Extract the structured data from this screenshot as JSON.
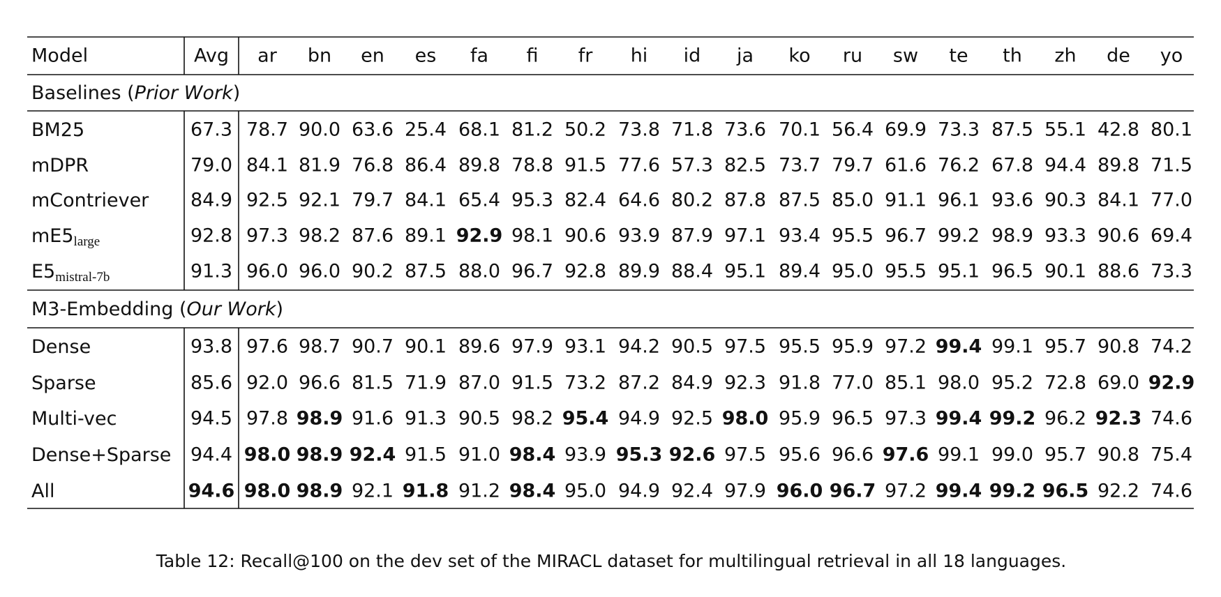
{
  "table": {
    "header": [
      "Model",
      "Avg",
      "ar",
      "bn",
      "en",
      "es",
      "fa",
      "fi",
      "fr",
      "hi",
      "id",
      "ja",
      "ko",
      "ru",
      "sw",
      "te",
      "th",
      "zh",
      "de",
      "yo"
    ],
    "sections": [
      {
        "title": {
          "prefix": "Baselines (",
          "italic": "Prior Work",
          "suffix": ")"
        },
        "rows": [
          {
            "model": {
              "name": "BM25"
            },
            "values": [
              "67.3",
              "78.7",
              "90.0",
              "63.6",
              "25.4",
              "68.1",
              "81.2",
              "50.2",
              "73.8",
              "71.8",
              "73.6",
              "70.1",
              "56.4",
              "69.9",
              "73.3",
              "87.5",
              "55.1",
              "42.8",
              "80.1"
            ],
            "bold": []
          },
          {
            "model": {
              "name": "mDPR"
            },
            "values": [
              "79.0",
              "84.1",
              "81.9",
              "76.8",
              "86.4",
              "89.8",
              "78.8",
              "91.5",
              "77.6",
              "57.3",
              "82.5",
              "73.7",
              "79.7",
              "61.6",
              "76.2",
              "67.8",
              "94.4",
              "89.8",
              "71.5"
            ],
            "bold": []
          },
          {
            "model": {
              "name": "mContriever"
            },
            "values": [
              "84.9",
              "92.5",
              "92.1",
              "79.7",
              "84.1",
              "65.4",
              "95.3",
              "82.4",
              "64.6",
              "80.2",
              "87.8",
              "87.5",
              "85.0",
              "91.1",
              "96.1",
              "93.6",
              "90.3",
              "84.1",
              "77.0"
            ],
            "bold": []
          },
          {
            "model": {
              "name": "mE5",
              "sub": "large"
            },
            "values": [
              "92.8",
              "97.3",
              "98.2",
              "87.6",
              "89.1",
              "92.9",
              "98.1",
              "90.6",
              "93.9",
              "87.9",
              "97.1",
              "93.4",
              "95.5",
              "96.7",
              "99.2",
              "98.9",
              "93.3",
              "90.6",
              "69.4"
            ],
            "bold": [
              5
            ]
          },
          {
            "model": {
              "name": "E5",
              "sub": "mistral-7b"
            },
            "values": [
              "91.3",
              "96.0",
              "96.0",
              "90.2",
              "87.5",
              "88.0",
              "96.7",
              "92.8",
              "89.9",
              "88.4",
              "95.1",
              "89.4",
              "95.0",
              "95.5",
              "95.1",
              "96.5",
              "90.1",
              "88.6",
              "73.3"
            ],
            "bold": []
          }
        ]
      },
      {
        "title": {
          "prefix": "M3-Embedding (",
          "italic": "Our Work",
          "suffix": ")"
        },
        "rows": [
          {
            "model": {
              "name": "Dense"
            },
            "values": [
              "93.8",
              "97.6",
              "98.7",
              "90.7",
              "90.1",
              "89.6",
              "97.9",
              "93.1",
              "94.2",
              "90.5",
              "97.5",
              "95.5",
              "95.9",
              "97.2",
              "99.4",
              "99.1",
              "95.7",
              "90.8",
              "74.2"
            ],
            "bold": [
              14
            ]
          },
          {
            "model": {
              "name": "Sparse"
            },
            "values": [
              "85.6",
              "92.0",
              "96.6",
              "81.5",
              "71.9",
              "87.0",
              "91.5",
              "73.2",
              "87.2",
              "84.9",
              "92.3",
              "91.8",
              "77.0",
              "85.1",
              "98.0",
              "95.2",
              "72.8",
              "69.0",
              "92.9"
            ],
            "bold": [
              18
            ]
          },
          {
            "model": {
              "name": "Multi-vec"
            },
            "values": [
              "94.5",
              "97.8",
              "98.9",
              "91.6",
              "91.3",
              "90.5",
              "98.2",
              "95.4",
              "94.9",
              "92.5",
              "98.0",
              "95.9",
              "96.5",
              "97.3",
              "99.4",
              "99.2",
              "96.2",
              "92.3",
              "74.6"
            ],
            "bold": [
              2,
              7,
              10,
              14,
              15,
              17
            ]
          },
          {
            "model": {
              "name": "Dense+Sparse"
            },
            "values": [
              "94.4",
              "98.0",
              "98.9",
              "92.4",
              "91.5",
              "91.0",
              "98.4",
              "93.9",
              "95.3",
              "92.6",
              "97.5",
              "95.6",
              "96.6",
              "97.6",
              "99.1",
              "99.0",
              "95.7",
              "90.8",
              "75.4"
            ],
            "bold": [
              1,
              2,
              3,
              6,
              8,
              9,
              13
            ]
          },
          {
            "model": {
              "name": "All"
            },
            "values": [
              "94.6",
              "98.0",
              "98.9",
              "92.1",
              "91.8",
              "91.2",
              "98.4",
              "95.0",
              "94.9",
              "92.4",
              "97.9",
              "96.0",
              "96.7",
              "97.2",
              "99.4",
              "99.2",
              "96.5",
              "92.2",
              "74.6"
            ],
            "bold": [
              0,
              1,
              2,
              4,
              6,
              11,
              12,
              14,
              15,
              16
            ]
          }
        ]
      }
    ],
    "caption": "Table 12: Recall@100 on the dev set of the MIRACL dataset for multilingual retrieval in all 18 languages."
  }
}
